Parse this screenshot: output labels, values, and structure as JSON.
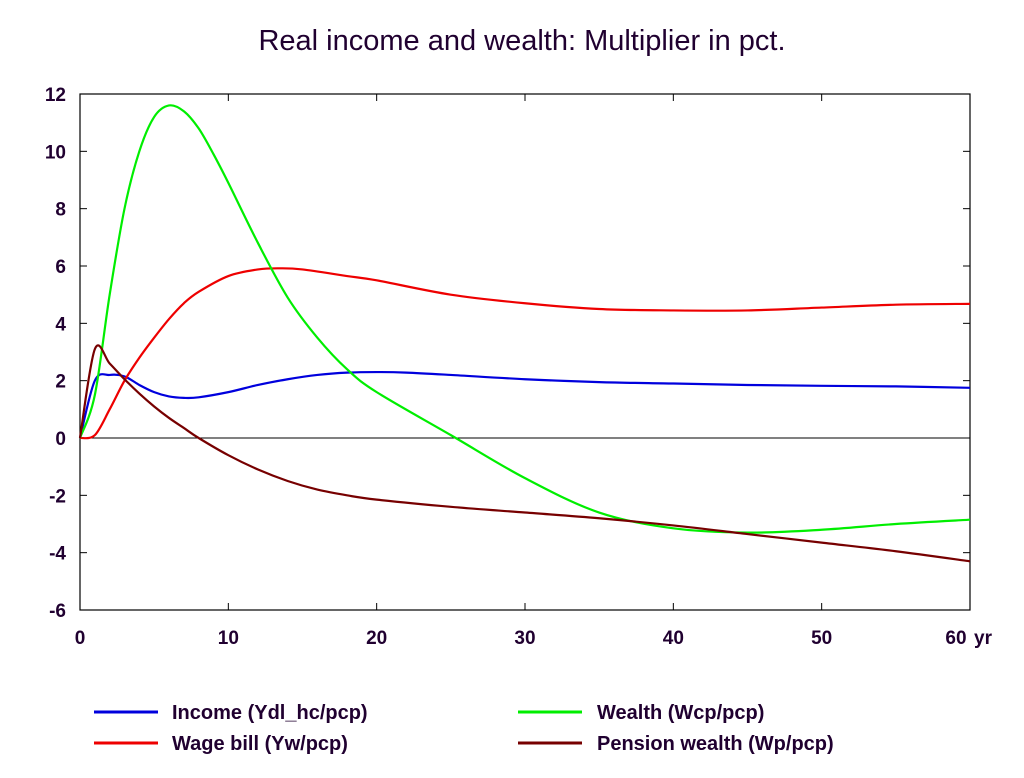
{
  "chart_data": {
    "type": "line",
    "title": "Real income and wealth: Multiplier in pct.",
    "xlabel": "",
    "ylabel": "",
    "x_unit": "yr",
    "xlim": [
      0,
      60
    ],
    "ylim": [
      -6,
      12
    ],
    "xticks": [
      0,
      10,
      20,
      30,
      40,
      50,
      60
    ],
    "yticks": [
      -6,
      -4,
      -2,
      0,
      2,
      4,
      6,
      8,
      10,
      12
    ],
    "zero_line": true,
    "grid": false,
    "legend_position": "bottom",
    "series": [
      {
        "name": "Income (Ydl_hc/pcp)",
        "color": "#0000dd",
        "x": [
          0,
          1,
          2,
          3,
          4,
          5,
          6,
          7,
          8,
          10,
          12,
          14,
          16,
          18,
          20,
          22,
          25,
          30,
          35,
          40,
          45,
          50,
          55,
          60
        ],
        "y": [
          0,
          2.0,
          2.2,
          2.15,
          1.85,
          1.6,
          1.45,
          1.4,
          1.42,
          1.6,
          1.85,
          2.05,
          2.2,
          2.28,
          2.3,
          2.28,
          2.2,
          2.05,
          1.95,
          1.9,
          1.85,
          1.82,
          1.8,
          1.75
        ]
      },
      {
        "name": "Wage bill (Yw/pcp)",
        "color": "#ee0000",
        "x": [
          0,
          1,
          2,
          3,
          4,
          5,
          6,
          7,
          8,
          10,
          12,
          13.5,
          15,
          18,
          20,
          25,
          30,
          35,
          40,
          45,
          50,
          55,
          60
        ],
        "y": [
          0,
          0.1,
          1.0,
          2.0,
          2.8,
          3.5,
          4.15,
          4.7,
          5.1,
          5.65,
          5.88,
          5.92,
          5.88,
          5.65,
          5.5,
          5.0,
          4.7,
          4.5,
          4.45,
          4.45,
          4.55,
          4.65,
          4.68
        ]
      },
      {
        "name": "Wealth (Wcp/pcp)",
        "color": "#00ee00",
        "x": [
          0,
          1,
          2,
          3,
          4,
          5,
          6,
          7,
          8,
          9,
          10,
          12,
          14,
          16,
          18,
          20,
          25,
          30,
          35,
          40,
          45,
          50,
          55,
          60
        ],
        "y": [
          0,
          1.5,
          5.0,
          8.0,
          10.0,
          11.2,
          11.6,
          11.4,
          10.8,
          9.9,
          8.9,
          6.8,
          4.9,
          3.5,
          2.4,
          1.6,
          0.1,
          -1.4,
          -2.6,
          -3.15,
          -3.3,
          -3.2,
          -3.0,
          -2.85
        ]
      },
      {
        "name": "Pension wealth (Wp/pcp)",
        "color": "#770000",
        "x": [
          0,
          1,
          2,
          3,
          4,
          5,
          6,
          7,
          8,
          10,
          12,
          14,
          16,
          18,
          20,
          25,
          30,
          35,
          40,
          45,
          50,
          55,
          60
        ],
        "y": [
          0,
          3.1,
          2.6,
          2.05,
          1.55,
          1.1,
          0.7,
          0.35,
          0.0,
          -0.6,
          -1.1,
          -1.5,
          -1.8,
          -2.0,
          -2.15,
          -2.4,
          -2.6,
          -2.8,
          -3.05,
          -3.35,
          -3.65,
          -3.95,
          -4.3
        ]
      }
    ]
  },
  "legend": [
    {
      "label": "Income (Ydl_hc/pcp)",
      "color": "#0000dd"
    },
    {
      "label": "Wealth (Wcp/pcp)",
      "color": "#00ee00"
    },
    {
      "label": "Wage bill (Yw/pcp)",
      "color": "#ee0000"
    },
    {
      "label": "Pension wealth (Wp/pcp)",
      "color": "#770000"
    }
  ]
}
